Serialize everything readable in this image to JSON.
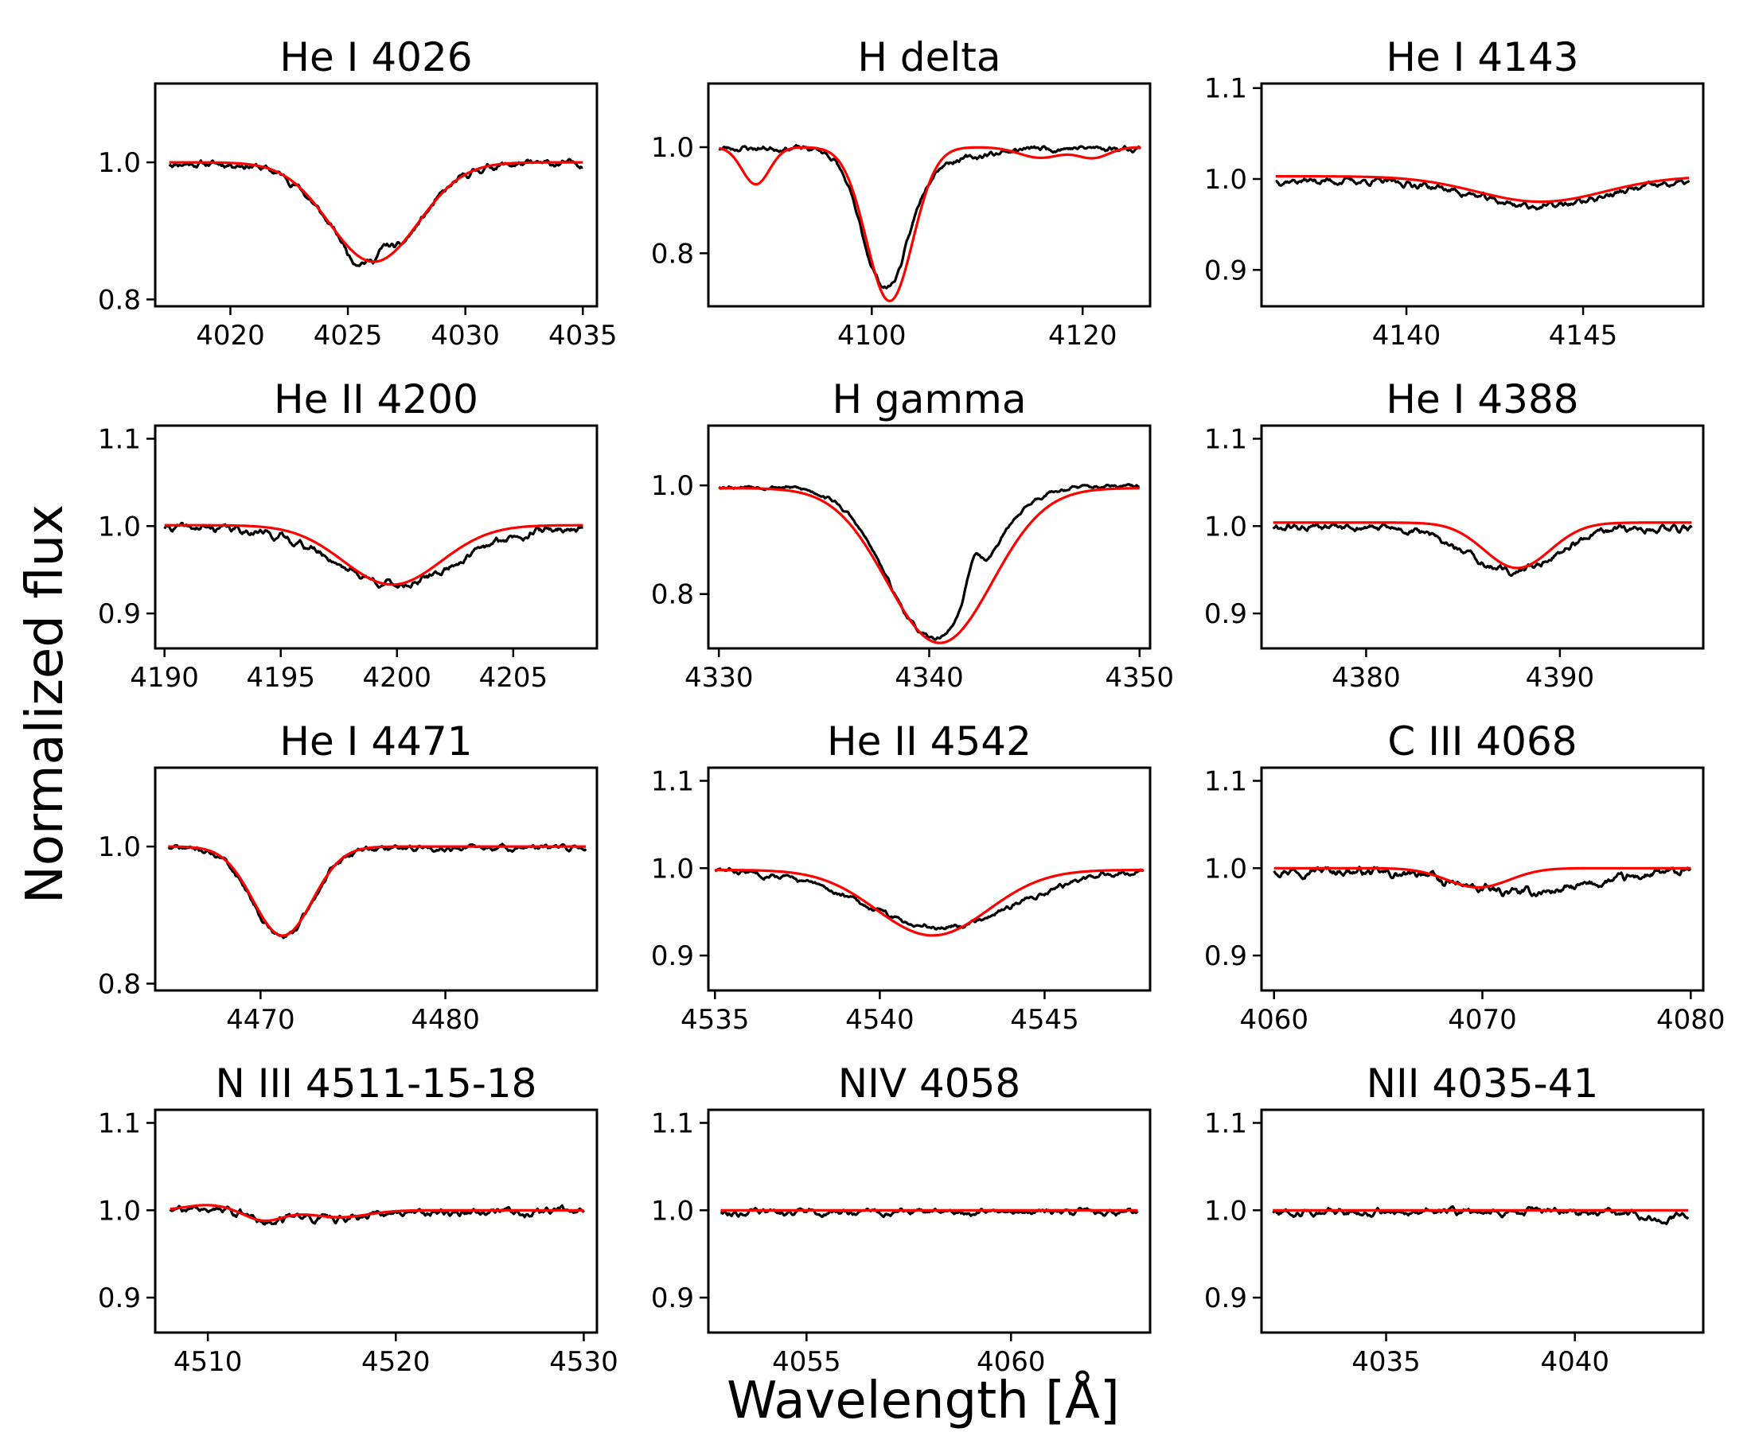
{
  "figure": {
    "xlabel": "Wavelength [Å]",
    "ylabel": "Normalized flux",
    "observed_color": "#000000",
    "model_color": "#ff0000"
  },
  "chart_data": [
    {
      "type": "line",
      "title": "He I 4026",
      "xlim": [
        4016.8,
        4035.6
      ],
      "ylim": [
        0.79,
        1.115
      ],
      "xticks": [
        4020,
        4025,
        4030,
        4035
      ],
      "yticks": [
        0.8,
        1.0
      ],
      "model": {
        "kind": "gauss",
        "continuum": 1.0,
        "lines": [
          {
            "center": 4026.1,
            "depth": 0.145,
            "sigma": 1.9
          }
        ]
      },
      "observed": {
        "noise": 0.008,
        "seed": 11,
        "bumps": [
          {
            "center": 4025.2,
            "amp": -0.01,
            "sigma": 0.25
          },
          {
            "center": 4026.6,
            "amp": 0.02,
            "sigma": 0.3
          }
        ]
      },
      "x_start": 4017.4,
      "x_end": 4035.0
    },
    {
      "type": "line",
      "title": "H delta",
      "xlim": [
        4084.5,
        4126.4
      ],
      "ylim": [
        0.7,
        1.12
      ],
      "xticks": [
        4100,
        4120
      ],
      "yticks": [
        0.8,
        1.0
      ],
      "model": {
        "kind": "gauss",
        "continuum": 1.0,
        "lines": [
          {
            "center": 4101.7,
            "depth": 0.29,
            "sigma": 2.2
          },
          {
            "center": 4089.0,
            "depth": 0.07,
            "sigma": 1.3
          },
          {
            "center": 4116.0,
            "depth": 0.02,
            "sigma": 2.0
          },
          {
            "center": 4121.0,
            "depth": 0.02,
            "sigma": 1.5
          }
        ]
      },
      "observed": {
        "noise": 0.009,
        "seed": 23,
        "bumps": [
          {
            "center": 4101.0,
            "amp": 0.01,
            "sigma": 1.0
          }
        ]
      },
      "obs_override": {
        "lines": [
          {
            "center": 4101.3,
            "depth": 0.27,
            "sigma": 2.2
          },
          {
            "center": 4108.0,
            "depth": 0.02,
            "sigma": 3.0
          }
        ]
      },
      "x_start": 4085.5,
      "x_end": 4125.5
    },
    {
      "type": "line",
      "title": "He I 4143",
      "xlim": [
        4135.9,
        4148.4
      ],
      "ylim": [
        0.86,
        1.105
      ],
      "xticks": [
        4140,
        4145
      ],
      "yticks": [
        0.9,
        1.0,
        1.1
      ],
      "model": {
        "kind": "gauss",
        "continuum": 1.003,
        "lines": [
          {
            "center": 4143.8,
            "depth": 0.028,
            "sigma": 1.8
          }
        ]
      },
      "observed": {
        "noise": 0.006,
        "seed": 37,
        "bumps": []
      },
      "x_start": 4136.3,
      "x_end": 4148.0
    },
    {
      "type": "line",
      "title": "He II 4200",
      "xlim": [
        4189.6,
        4208.6
      ],
      "ylim": [
        0.86,
        1.115
      ],
      "xticks": [
        4190,
        4195,
        4200,
        4205
      ],
      "yticks": [
        0.9,
        1.0,
        1.1
      ],
      "model": {
        "kind": "gauss",
        "continuum": 1.001,
        "lines": [
          {
            "center": 4199.8,
            "depth": 0.068,
            "sigma": 2.1
          }
        ]
      },
      "observed": {
        "noise": 0.007,
        "seed": 41,
        "bumps": []
      },
      "obs_override": {
        "lines": [
          {
            "center": 4200.0,
            "depth": 0.065,
            "sigma": 2.6
          }
        ]
      },
      "x_start": 4190.0,
      "x_end": 4208.0
    },
    {
      "type": "line",
      "title": "H gamma",
      "xlim": [
        4329.5,
        4350.5
      ],
      "ylim": [
        0.7,
        1.11
      ],
      "xticks": [
        4330,
        4340,
        4350
      ],
      "yticks": [
        0.8,
        1.0
      ],
      "model": {
        "kind": "gauss",
        "continuum": 0.995,
        "lines": [
          {
            "center": 4340.5,
            "depth": 0.285,
            "sigma": 2.5
          }
        ]
      },
      "observed": {
        "noise": 0.006,
        "seed": 53,
        "bumps": [
          {
            "center": 4342.1,
            "amp": 0.06,
            "sigma": 0.35
          }
        ]
      },
      "obs_override": {
        "lines": [
          {
            "center": 4340.2,
            "depth": 0.28,
            "sigma": 2.2
          }
        ]
      },
      "x_start": 4330.0,
      "x_end": 4350.0
    },
    {
      "type": "line",
      "title": "He I 4388",
      "xlim": [
        4374.6,
        4397.4
      ],
      "ylim": [
        0.86,
        1.115
      ],
      "xticks": [
        4380,
        4390
      ],
      "yticks": [
        0.9,
        1.0,
        1.1
      ],
      "model": {
        "kind": "gauss",
        "continuum": 1.004,
        "lines": [
          {
            "center": 4387.8,
            "depth": 0.052,
            "sigma": 1.7
          }
        ]
      },
      "observed": {
        "noise": 0.007,
        "seed": 61,
        "bumps": []
      },
      "obs_override": {
        "lines": [
          {
            "center": 4387.5,
            "depth": 0.05,
            "sigma": 2.3
          }
        ]
      },
      "x_start": 4375.2,
      "x_end": 4396.8
    },
    {
      "type": "line",
      "title": "He I 4471",
      "xlim": [
        4464.3,
        4488.2
      ],
      "ylim": [
        0.79,
        1.115
      ],
      "xticks": [
        4470,
        4480
      ],
      "yticks": [
        0.8,
        1.0
      ],
      "model": {
        "kind": "gauss",
        "continuum": 1.0,
        "lines": [
          {
            "center": 4471.2,
            "depth": 0.13,
            "sigma": 1.6
          },
          {
            "center": 4484.5,
            "depth": 0.0,
            "sigma": 1.0
          }
        ]
      },
      "observed": {
        "noise": 0.007,
        "seed": 71,
        "bumps": []
      },
      "x_start": 4465.0,
      "x_end": 4487.6
    },
    {
      "type": "line",
      "title": "He II 4542",
      "xlim": [
        4534.8,
        4548.2
      ],
      "ylim": [
        0.86,
        1.115
      ],
      "xticks": [
        4535,
        4540,
        4545
      ],
      "yticks": [
        0.9,
        1.0,
        1.1
      ],
      "model": {
        "kind": "gauss",
        "continuum": 0.998,
        "lines": [
          {
            "center": 4541.6,
            "depth": 0.075,
            "sigma": 1.7
          }
        ]
      },
      "observed": {
        "noise": 0.005,
        "seed": 83,
        "bumps": []
      },
      "obs_override": {
        "lines": [
          {
            "center": 4541.8,
            "depth": 0.065,
            "sigma": 2.3
          }
        ]
      },
      "x_start": 4535.0,
      "x_end": 4548.0
    },
    {
      "type": "line",
      "title": "C III 4068",
      "xlim": [
        4059.4,
        4080.6
      ],
      "ylim": [
        0.86,
        1.115
      ],
      "xticks": [
        4060,
        4070,
        4080
      ],
      "yticks": [
        0.9,
        1.0,
        1.1
      ],
      "model": {
        "kind": "gauss",
        "continuum": 1.0,
        "lines": [
          {
            "center": 4069.8,
            "depth": 0.022,
            "sigma": 1.5
          }
        ]
      },
      "observed": {
        "noise": 0.008,
        "seed": 97,
        "bumps": [
          {
            "center": 4067.2,
            "amp": 0.008,
            "sigma": 0.3
          }
        ]
      },
      "obs_override": {
        "lines": [
          {
            "center": 4072.0,
            "depth": 0.026,
            "sigma": 3.5
          }
        ]
      },
      "x_start": 4060.0,
      "x_end": 4080.0
    },
    {
      "type": "line",
      "title": "N III 4511-15-18",
      "xlim": [
        4507.2,
        4530.7
      ],
      "ylim": [
        0.86,
        1.115
      ],
      "xticks": [
        4510,
        4520,
        4530
      ],
      "yticks": [
        0.9,
        1.0,
        1.1
      ],
      "model": {
        "kind": "gauss",
        "continuum": 1.0,
        "lines": [
          {
            "center": 4513.0,
            "depth": 0.012,
            "sigma": 1.0
          },
          {
            "center": 4510.0,
            "depth": -0.006,
            "sigma": 1.2
          },
          {
            "center": 4517.0,
            "depth": 0.008,
            "sigma": 1.5
          }
        ]
      },
      "observed": {
        "noise": 0.007,
        "seed": 107,
        "bumps": []
      },
      "x_start": 4508.0,
      "x_end": 4530.0
    },
    {
      "type": "line",
      "title": "NIV 4058",
      "xlim": [
        4052.6,
        4063.4
      ],
      "ylim": [
        0.86,
        1.115
      ],
      "xticks": [
        4055,
        4060
      ],
      "yticks": [
        0.9,
        1.0,
        1.1
      ],
      "model": {
        "kind": "gauss",
        "continuum": 1.0,
        "lines": []
      },
      "observed": {
        "noise": 0.006,
        "seed": 113,
        "bumps": []
      },
      "x_start": 4052.9,
      "x_end": 4063.1
    },
    {
      "type": "line",
      "title": "NII 4035-41",
      "xlim": [
        4031.7,
        4043.4
      ],
      "ylim": [
        0.86,
        1.115
      ],
      "xticks": [
        4035,
        4040
      ],
      "yticks": [
        0.9,
        1.0,
        1.1
      ],
      "model": {
        "kind": "gauss",
        "continuum": 1.0,
        "lines": []
      },
      "observed": {
        "noise": 0.007,
        "seed": 127,
        "bumps": [
          {
            "center": 4042.3,
            "amp": -0.012,
            "sigma": 0.3
          }
        ]
      },
      "x_start": 4032.0,
      "x_end": 4043.0
    }
  ]
}
